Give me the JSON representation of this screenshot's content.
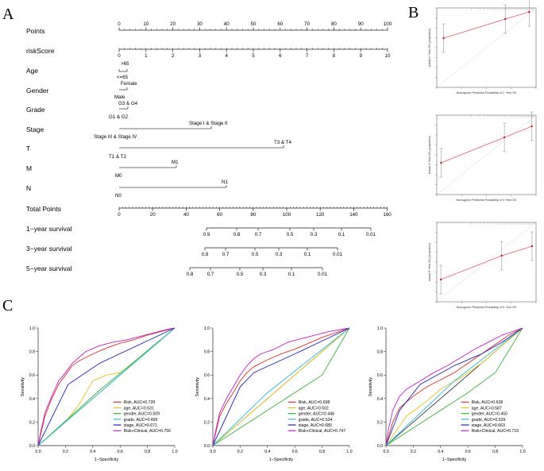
{
  "panels": {
    "a": "A",
    "b": "B",
    "c": "C"
  },
  "nomogram": {
    "points_label": "Points",
    "points_ticks": [
      "0",
      "10",
      "20",
      "30",
      "40",
      "50",
      "60",
      "70",
      "80",
      "90",
      "100"
    ],
    "risk_label": "riskScore",
    "risk_ticks": [
      "0",
      "1",
      "2",
      "3",
      "4",
      "5",
      "6",
      "7",
      "8",
      "9",
      "10"
    ],
    "age": {
      "label": "Age",
      "upper": ">65",
      "lower": "<=65"
    },
    "gender": {
      "label": "Gender",
      "upper": "Female",
      "lower": "Male"
    },
    "grade": {
      "label": "Grade",
      "upper": "G3 & G4",
      "lower": "G1 & G2"
    },
    "stage": {
      "label": "Stage",
      "upper": "Stage I & Stage II",
      "lower": "Stage III & Stage IV"
    },
    "t": {
      "label": "T",
      "upper": "T3 & T4",
      "lower": "T1 & T2"
    },
    "m": {
      "label": "M",
      "upper": "M1",
      "lower": "M0"
    },
    "n": {
      "label": "N",
      "upper": "N1",
      "lower": "N0"
    },
    "total_label": "Total Points",
    "total_ticks": [
      "0",
      "20",
      "40",
      "60",
      "80",
      "100",
      "120",
      "140",
      "160"
    ],
    "surv1_label": "1−year survival",
    "surv1_ticks": [
      "0.9",
      "0.8",
      "0.7",
      "0.5",
      "0.3",
      "0.1",
      "0.01"
    ],
    "surv3_label": "3−year survival",
    "surv3_ticks": [
      "0.8",
      "0.7",
      "0.5",
      "0.3",
      "0.1",
      "0.01"
    ],
    "surv5_label": "5−year survival",
    "surv5_ticks": [
      "0.8",
      "0.7",
      "0.5",
      "0.3",
      "0.1",
      "0.01"
    ]
  },
  "colors": {
    "risk": "#d9302b",
    "age": "#e5c21c",
    "gender": "#33b533",
    "grade": "#2bbfd6",
    "stage": "#2222b8",
    "combo": "#c21ec9",
    "calib_line": "#e05a6e",
    "calib_point": "#c02020"
  },
  "chart_data": [
    {
      "type": "line",
      "id": "roc-1",
      "title": "",
      "xlabel": "1−Specificity",
      "ylabel": "Sensitivity",
      "xlim": [
        0,
        1
      ],
      "ylim": [
        0,
        1
      ],
      "ticks": [
        "0.0",
        "0.2",
        "0.4",
        "0.6",
        "0.8",
        "1.0"
      ],
      "series": [
        {
          "name": "Risk, AUC=0.739",
          "key": "risk",
          "x": [
            0,
            0.02,
            0.05,
            0.1,
            0.15,
            0.2,
            0.25,
            0.3,
            0.4,
            0.5,
            0.6,
            0.7,
            0.8,
            0.9,
            1
          ],
          "y": [
            0,
            0.1,
            0.25,
            0.4,
            0.52,
            0.6,
            0.68,
            0.72,
            0.78,
            0.83,
            0.87,
            0.9,
            0.94,
            0.97,
            1
          ]
        },
        {
          "name": "age, AUC=0.531",
          "key": "age",
          "x": [
            0,
            0.2,
            0.3,
            0.4,
            0.5,
            0.6,
            0.7,
            1
          ],
          "y": [
            0,
            0.2,
            0.35,
            0.55,
            0.6,
            0.62,
            0.7,
            1
          ]
        },
        {
          "name": "gender, AUC=0.509",
          "key": "gender",
          "x": [
            0,
            0.45,
            1
          ],
          "y": [
            0,
            0.47,
            1
          ]
        },
        {
          "name": "grade, AUC=0.499",
          "key": "grade",
          "x": [
            0,
            0.5,
            1
          ],
          "y": [
            0,
            0.5,
            1
          ]
        },
        {
          "name": "stage, AUC=0.671",
          "key": "stage",
          "x": [
            0,
            0.22,
            0.45,
            1
          ],
          "y": [
            0,
            0.52,
            0.7,
            1
          ]
        },
        {
          "name": "Risk+Clinical, AUC=0.756",
          "key": "combo",
          "x": [
            0,
            0.02,
            0.05,
            0.1,
            0.15,
            0.2,
            0.25,
            0.3,
            0.35,
            0.45,
            0.55,
            0.65,
            0.75,
            0.85,
            0.95,
            1
          ],
          "y": [
            0,
            0.12,
            0.28,
            0.42,
            0.55,
            0.62,
            0.7,
            0.75,
            0.8,
            0.85,
            0.88,
            0.9,
            0.93,
            0.96,
            0.99,
            1
          ]
        }
      ]
    },
    {
      "type": "line",
      "id": "roc-2",
      "title": "",
      "xlabel": "1−Specificity",
      "ylabel": "Sensitivity",
      "xlim": [
        0,
        1
      ],
      "ylim": [
        0,
        1
      ],
      "ticks": [
        "0.0",
        "0.2",
        "0.4",
        "0.6",
        "0.8",
        "1.0"
      ],
      "series": [
        {
          "name": "Risk, AUC=0.698",
          "key": "risk",
          "x": [
            0,
            0.02,
            0.05,
            0.1,
            0.15,
            0.2,
            0.25,
            0.3,
            0.4,
            0.5,
            0.6,
            0.7,
            0.8,
            0.9,
            1
          ],
          "y": [
            0,
            0.1,
            0.25,
            0.36,
            0.45,
            0.55,
            0.62,
            0.67,
            0.73,
            0.78,
            0.82,
            0.87,
            0.92,
            0.96,
            1
          ]
        },
        {
          "name": "age, AUC=0.502",
          "key": "age",
          "x": [
            0,
            0.5,
            1
          ],
          "y": [
            0,
            0.5,
            1
          ]
        },
        {
          "name": "gender, AUC=0.446",
          "key": "gender",
          "x": [
            0,
            0.4,
            0.8,
            1
          ],
          "y": [
            0,
            0.3,
            0.6,
            1
          ]
        },
        {
          "name": "grade, AUC=0.534",
          "key": "grade",
          "x": [
            0,
            0.4,
            1
          ],
          "y": [
            0,
            0.45,
            1
          ]
        },
        {
          "name": "stage, AUC=0.680",
          "key": "stage",
          "x": [
            0,
            0.1,
            0.2,
            0.3,
            0.45,
            0.6,
            1
          ],
          "y": [
            0,
            0.25,
            0.5,
            0.62,
            0.7,
            0.78,
            1
          ]
        },
        {
          "name": "Risk+Clinical, AUC=0.747",
          "key": "combo",
          "x": [
            0,
            0.02,
            0.05,
            0.1,
            0.15,
            0.2,
            0.25,
            0.3,
            0.35,
            0.45,
            0.55,
            0.65,
            0.75,
            0.85,
            0.95,
            1
          ],
          "y": [
            0,
            0.12,
            0.28,
            0.4,
            0.5,
            0.6,
            0.68,
            0.74,
            0.78,
            0.82,
            0.88,
            0.91,
            0.94,
            0.97,
            0.99,
            1
          ]
        }
      ]
    },
    {
      "type": "line",
      "id": "roc-3",
      "title": "",
      "xlabel": "1−Specificity",
      "ylabel": "Sensitivity",
      "xlim": [
        0,
        1
      ],
      "ylim": [
        0,
        1
      ],
      "ticks": [
        "0.0",
        "0.2",
        "0.4",
        "0.6",
        "0.8",
        "1.0"
      ],
      "series": [
        {
          "name": "Risk, AUC=0.638",
          "key": "risk",
          "x": [
            0,
            0.05,
            0.1,
            0.2,
            0.3,
            0.4,
            0.5,
            0.6,
            0.7,
            0.8,
            0.9,
            1
          ],
          "y": [
            0,
            0.2,
            0.32,
            0.42,
            0.5,
            0.56,
            0.62,
            0.7,
            0.78,
            0.86,
            0.94,
            1
          ]
        },
        {
          "name": "age, AUC=0.587",
          "key": "age",
          "x": [
            0,
            0.15,
            0.3,
            0.4,
            0.55,
            0.7,
            1
          ],
          "y": [
            0,
            0.25,
            0.38,
            0.48,
            0.58,
            0.7,
            1
          ]
        },
        {
          "name": "gender, AUC=0.450",
          "key": "gender",
          "x": [
            0,
            0.6,
            0.8,
            1
          ],
          "y": [
            0,
            0.45,
            0.62,
            1
          ]
        },
        {
          "name": "grade, AUC=0.539",
          "key": "grade",
          "x": [
            0,
            0.5,
            1
          ],
          "y": [
            0,
            0.55,
            1
          ]
        },
        {
          "name": "stage, AUC=0.663",
          "key": "stage",
          "x": [
            0,
            0.1,
            0.25,
            0.5,
            0.7,
            0.85,
            1
          ],
          "y": [
            0,
            0.3,
            0.52,
            0.68,
            0.78,
            0.88,
            1
          ]
        },
        {
          "name": "Risk+Clinical, AUC=0.719",
          "key": "combo",
          "x": [
            0,
            0.02,
            0.05,
            0.1,
            0.15,
            0.25,
            0.35,
            0.45,
            0.55,
            0.65,
            0.75,
            0.85,
            0.95,
            1
          ],
          "y": [
            0,
            0.15,
            0.3,
            0.42,
            0.48,
            0.55,
            0.62,
            0.68,
            0.75,
            0.82,
            0.88,
            0.94,
            0.98,
            1
          ]
        }
      ]
    },
    {
      "type": "scatter",
      "id": "calib-1",
      "xlabel": "Nomogram−Predicted Probability of 1−Year OS",
      "ylabel": "Actual 1−Year OS (proportion)",
      "x": [
        0.68,
        0.86,
        0.93
      ],
      "y": [
        0.62,
        0.86,
        0.95
      ]
    },
    {
      "type": "scatter",
      "id": "calib-2",
      "xlabel": "Nomogram−Predicted Probability of 3−Year OS",
      "ylabel": "Actual 3−Year OS (proportion)",
      "x": [
        0.45,
        0.75,
        0.88
      ],
      "y": [
        0.4,
        0.72,
        0.86
      ]
    },
    {
      "type": "scatter",
      "id": "calib-3",
      "xlabel": "Nomogram−Predicted Probability of 5−Year OS",
      "ylabel": "Actual 5−Year OS (proportion)",
      "x": [
        0.35,
        0.65,
        0.8
      ],
      "y": [
        0.28,
        0.58,
        0.7
      ]
    }
  ]
}
